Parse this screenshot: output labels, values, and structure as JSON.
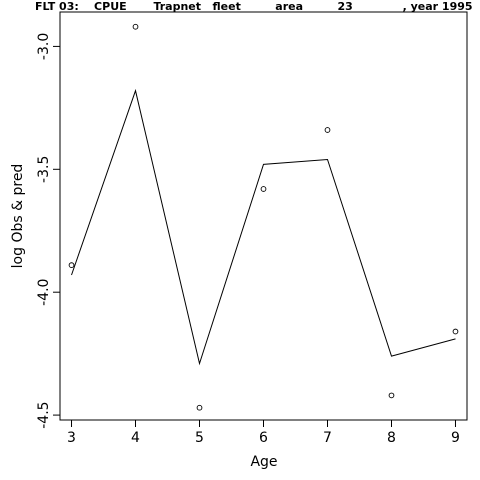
{
  "chart_data": {
    "type": "line",
    "title": "FLT 03:    CPUE       Trapnet   fleet         area         23             , year 1995",
    "xlabel": "Age",
    "ylabel": "log Obs & pred",
    "xlim": [
      2.82,
      9.18
    ],
    "ylim": [
      -4.52,
      -2.86
    ],
    "x_ticks": [
      3,
      4,
      5,
      6,
      7,
      8,
      9
    ],
    "y_ticks": [
      -3.0,
      -3.5,
      -4.0,
      -4.5
    ],
    "y_tick_labels": [
      "-3.0",
      "-3.5",
      "-4.0",
      "-4.5"
    ],
    "x_tick_labels": [
      "3",
      "4",
      "5",
      "6",
      "7",
      "8",
      "9"
    ],
    "series": [
      {
        "style": "points",
        "x": [
          3,
          4,
          5,
          6,
          7,
          8,
          9
        ],
        "values": [
          -3.89,
          -2.92,
          -4.47,
          -3.58,
          -3.34,
          -4.42,
          -4.16
        ]
      },
      {
        "style": "line",
        "x": [
          3,
          4,
          5,
          6,
          7,
          8,
          9
        ],
        "values": [
          -3.93,
          -3.18,
          -4.29,
          -3.48,
          -3.46,
          -4.26,
          -4.19
        ]
      }
    ],
    "grid": false,
    "legend": "none"
  }
}
